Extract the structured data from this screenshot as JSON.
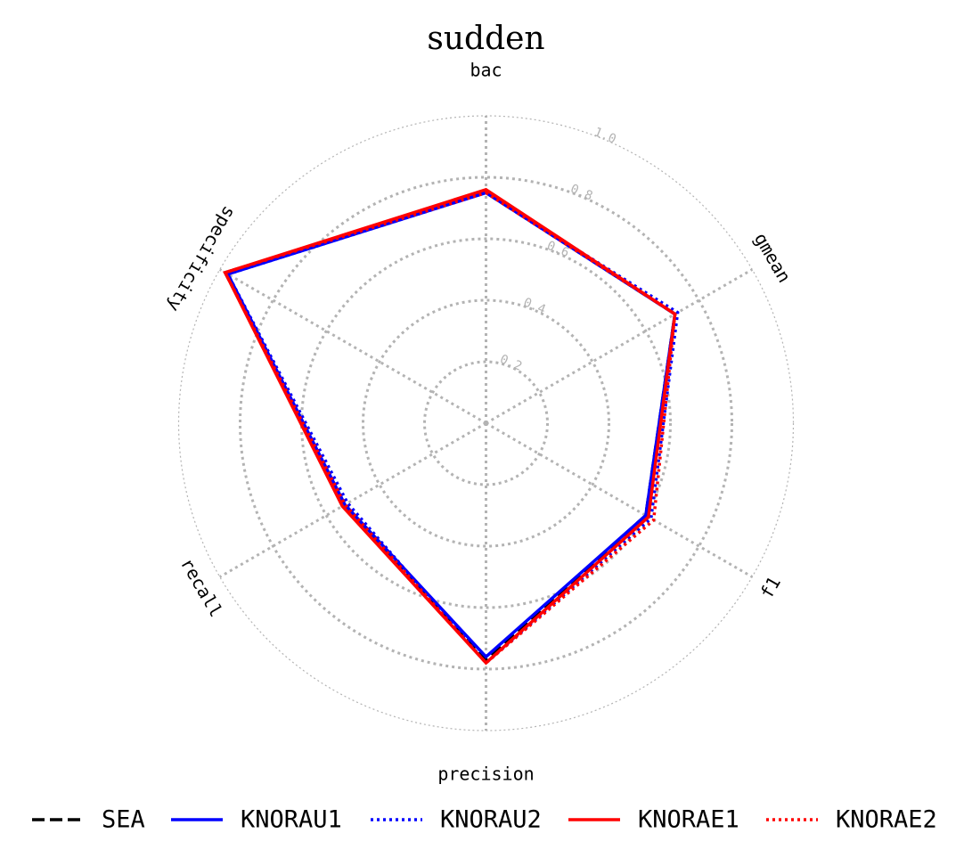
{
  "chart_data": {
    "type": "radar",
    "title": "sudden",
    "axes": [
      "bac",
      "gmean",
      "f1",
      "precision",
      "recall",
      "specificity"
    ],
    "r_ticks": [
      0.2,
      0.4,
      0.6,
      0.8,
      1.0
    ],
    "r_tick_labels": [
      "0.2",
      "0.4",
      "0.6",
      "0.8",
      "1.0"
    ],
    "rlim": [
      0,
      1.0
    ],
    "grid": true,
    "legend_position": "bottom",
    "series": [
      {
        "name": "SEA",
        "color": "#000000",
        "dash": "dashed",
        "values": [
          0.75,
          0.71,
          0.6,
          0.77,
          0.53,
          0.98
        ]
      },
      {
        "name": "KNORAU1",
        "color": "#0000ff",
        "dash": "solid",
        "values": [
          0.75,
          0.71,
          0.6,
          0.76,
          0.53,
          0.97
        ]
      },
      {
        "name": "KNORAU2",
        "color": "#0000ff",
        "dash": "dotted",
        "values": [
          0.75,
          0.72,
          0.62,
          0.78,
          0.52,
          0.97
        ]
      },
      {
        "name": "KNORAE1",
        "color": "#ff0000",
        "dash": "solid",
        "values": [
          0.76,
          0.71,
          0.61,
          0.78,
          0.54,
          0.98
        ]
      },
      {
        "name": "KNORAE2",
        "color": "#ff0000",
        "dash": "dotted",
        "values": [
          0.75,
          0.71,
          0.63,
          0.78,
          0.53,
          0.98
        ]
      }
    ]
  }
}
